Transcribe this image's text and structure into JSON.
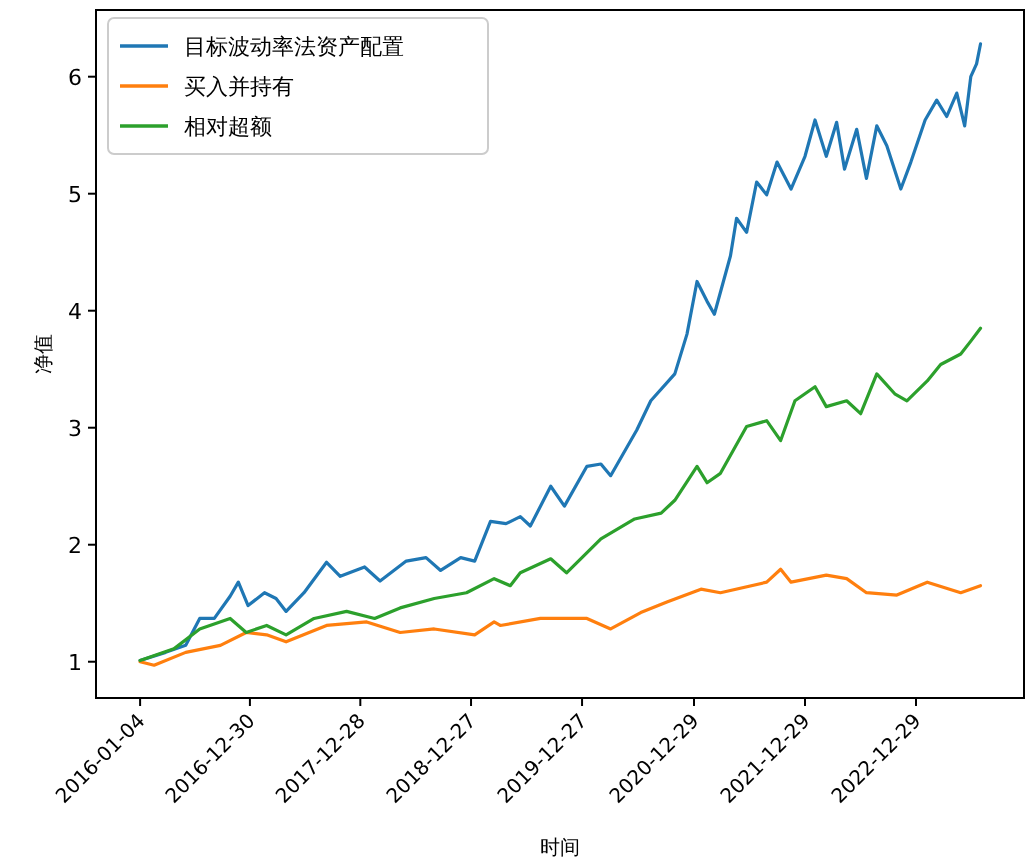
{
  "chart_data": {
    "type": "line",
    "xlabel": "时间",
    "ylabel": "净值",
    "xlim": [
      "2015-08-12",
      "2023-12-19"
    ],
    "ylim": [
      0.69,
      6.57
    ],
    "xticks": [
      "2016-01-04",
      "2016-12-30",
      "2017-12-28",
      "2018-12-27",
      "2019-12-27",
      "2020-12-29",
      "2021-12-29",
      "2022-12-29"
    ],
    "yticks": [
      1,
      2,
      3,
      4,
      5,
      6
    ],
    "grid": false,
    "legend": "top left",
    "line_style": "solid",
    "marker": "none",
    "series": [
      {
        "name": "目标波动率法资产配置",
        "color": "#1f77b4",
        "x": [
          "2016-01-04",
          "2016-03-28",
          "2016-06-02",
          "2016-07-18",
          "2016-09-04",
          "2016-10-26",
          "2016-11-22",
          "2016-12-24",
          "2017-02-16",
          "2017-03-26",
          "2017-04-28",
          "2017-06-26",
          "2017-09-08",
          "2017-10-23",
          "2018-01-11",
          "2018-03-03",
          "2018-05-28",
          "2018-08-01",
          "2018-09-18",
          "2018-11-23",
          "2019-01-08",
          "2019-03-01",
          "2019-04-21",
          "2019-06-07",
          "2019-07-10",
          "2019-09-15",
          "2019-10-30",
          "2020-01-12",
          "2020-02-27",
          "2020-03-30",
          "2020-06-24",
          "2020-08-09",
          "2020-10-27",
          "2020-12-06",
          "2021-01-08",
          "2021-02-10",
          "2021-03-06",
          "2021-04-28",
          "2021-05-18",
          "2021-06-20",
          "2021-07-23",
          "2021-08-25",
          "2021-09-28",
          "2021-11-13",
          "2021-12-29",
          "2022-01-31",
          "2022-03-09",
          "2022-04-12",
          "2022-05-08",
          "2022-06-17",
          "2022-07-19",
          "2022-08-22",
          "2022-09-24",
          "2022-11-09",
          "2022-12-12",
          "2023-01-28",
          "2023-03-07",
          "2023-04-09",
          "2023-05-12",
          "2023-06-07",
          "2023-06-27",
          "2023-07-16",
          "2023-07-29"
        ],
        "values": [
          1.01,
          1.08,
          1.14,
          1.37,
          1.37,
          1.56,
          1.68,
          1.48,
          1.59,
          1.54,
          1.43,
          1.59,
          1.85,
          1.73,
          1.81,
          1.69,
          1.86,
          1.89,
          1.78,
          1.89,
          1.86,
          2.2,
          2.18,
          2.24,
          2.16,
          2.5,
          2.33,
          2.67,
          2.69,
          2.59,
          2.98,
          3.23,
          3.46,
          3.8,
          4.25,
          4.08,
          3.97,
          4.47,
          4.79,
          4.67,
          5.1,
          4.99,
          5.27,
          5.04,
          5.32,
          5.63,
          5.32,
          5.61,
          5.21,
          5.55,
          5.13,
          5.58,
          5.41,
          5.04,
          5.27,
          5.63,
          5.8,
          5.66,
          5.86,
          5.58,
          6.0,
          6.11,
          6.28
        ]
      },
      {
        "name": "买入并持有",
        "color": "#ff7f0e",
        "x": [
          "2016-01-04",
          "2016-02-19",
          "2016-06-02",
          "2016-09-24",
          "2016-12-18",
          "2017-02-23",
          "2017-04-28",
          "2017-09-08",
          "2018-01-18",
          "2018-05-08",
          "2018-08-28",
          "2019-01-08",
          "2019-03-13",
          "2019-04-02",
          "2019-08-12",
          "2020-01-12",
          "2020-03-30",
          "2020-07-07",
          "2020-10-01",
          "2021-01-21",
          "2021-03-26",
          "2021-08-25",
          "2021-10-10",
          "2021-11-13",
          "2022-03-09",
          "2022-05-15",
          "2022-07-19",
          "2022-10-27",
          "2023-02-04",
          "2023-05-25",
          "2023-07-29"
        ],
        "values": [
          1.0,
          0.97,
          1.08,
          1.14,
          1.25,
          1.23,
          1.17,
          1.31,
          1.34,
          1.25,
          1.28,
          1.23,
          1.34,
          1.31,
          1.37,
          1.37,
          1.28,
          1.42,
          1.51,
          1.62,
          1.59,
          1.68,
          1.79,
          1.68,
          1.74,
          1.71,
          1.59,
          1.57,
          1.68,
          1.59,
          1.65
        ]
      },
      {
        "name": "相对超额",
        "color": "#2ca02c",
        "x": [
          "2016-01-04",
          "2016-04-24",
          "2016-07-18",
          "2016-10-26",
          "2016-12-18",
          "2017-02-23",
          "2017-04-28",
          "2017-07-29",
          "2017-11-13",
          "2018-02-13",
          "2018-05-08",
          "2018-08-28",
          "2018-12-12",
          "2019-03-13",
          "2019-05-05",
          "2019-06-07",
          "2019-09-15",
          "2019-11-06",
          "2020-02-27",
          "2020-06-17",
          "2020-09-12",
          "2020-10-27",
          "2021-01-08",
          "2021-02-10",
          "2021-03-26",
          "2021-06-20",
          "2021-08-25",
          "2021-10-10",
          "2021-11-26",
          "2022-01-31",
          "2022-03-09",
          "2022-05-15",
          "2022-06-30",
          "2022-08-22",
          "2022-10-20",
          "2022-11-29",
          "2023-02-04",
          "2023-03-20",
          "2023-05-25",
          "2023-06-27",
          "2023-07-29"
        ],
        "values": [
          1.01,
          1.11,
          1.28,
          1.37,
          1.25,
          1.31,
          1.23,
          1.37,
          1.43,
          1.37,
          1.46,
          1.54,
          1.59,
          1.71,
          1.65,
          1.76,
          1.88,
          1.76,
          2.05,
          2.22,
          2.27,
          2.38,
          2.67,
          2.53,
          2.61,
          3.01,
          3.06,
          2.89,
          3.23,
          3.35,
          3.18,
          3.23,
          3.12,
          3.46,
          3.29,
          3.23,
          3.4,
          3.54,
          3.63,
          3.74,
          3.85
        ]
      }
    ]
  }
}
